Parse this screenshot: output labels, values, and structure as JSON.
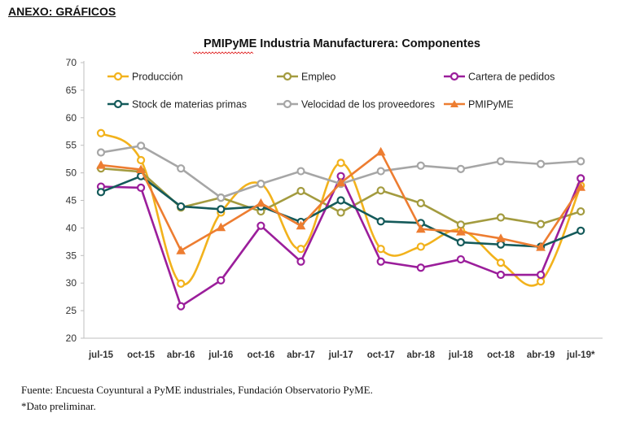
{
  "page": {
    "heading": "ANEXO: GRÁFICOS",
    "source": "Fuente: Encuesta Coyuntural a PyME industriales, Fundación Observatorio PyME.",
    "note": "*Dato preliminar."
  },
  "chart_data": {
    "type": "line",
    "title": "PMIPyME Industria Manufacturera: Componentes",
    "xlabel": "",
    "ylabel": "",
    "categories": [
      "jul-15",
      "oct-15",
      "abr-16",
      "jul-16",
      "oct-16",
      "abr-17",
      "jul-17",
      "oct-17",
      "abr-18",
      "jul-18",
      "oct-18",
      "abr-19",
      "jul-19*"
    ],
    "ylim": [
      20,
      70
    ],
    "yticks": [
      20,
      25,
      30,
      35,
      40,
      45,
      50,
      55,
      60,
      65,
      70
    ],
    "grid": false,
    "legend_position": "top",
    "series": [
      {
        "name": "Producción",
        "color": "#F2B21C",
        "marker": "circle",
        "smooth": true,
        "values": [
          57.2,
          52.3,
          29.9,
          42.8,
          48.0,
          36.2,
          51.8,
          36.2,
          36.6,
          39.6,
          33.7,
          30.3,
          47.7
        ]
      },
      {
        "name": "Empleo",
        "color": "#A39B3F",
        "marker": "circle",
        "smooth": false,
        "values": [
          50.8,
          50.2,
          43.7,
          45.5,
          43.0,
          46.7,
          42.8,
          46.8,
          44.5,
          40.6,
          41.9,
          40.7,
          43.0
        ]
      },
      {
        "name": "Cartera de pedidos",
        "color": "#9B1E9B",
        "marker": "circle",
        "smooth": false,
        "values": [
          47.5,
          47.3,
          25.8,
          30.5,
          40.4,
          33.9,
          49.4,
          33.9,
          32.8,
          34.3,
          31.5,
          31.5,
          49.0
        ]
      },
      {
        "name": "Stock de materias primas",
        "color": "#145A5A",
        "marker": "circle",
        "smooth": false,
        "values": [
          46.5,
          49.4,
          43.9,
          43.4,
          43.9,
          41.1,
          45.0,
          41.2,
          40.9,
          37.4,
          37.0,
          36.6,
          39.5
        ]
      },
      {
        "name": "Velocidad de los proveedores",
        "color": "#A6A6A6",
        "marker": "circle",
        "smooth": false,
        "values": [
          53.7,
          54.9,
          50.8,
          45.5,
          48.0,
          50.3,
          48.0,
          50.3,
          51.3,
          50.7,
          52.1,
          51.6,
          52.1
        ]
      },
      {
        "name": "PMIPyME",
        "color": "#ED7D31",
        "marker": "triangle",
        "smooth": false,
        "values": [
          51.4,
          50.6,
          35.9,
          40.1,
          44.5,
          40.4,
          48.2,
          53.8,
          39.8,
          39.3,
          38.1,
          36.5,
          47.4
        ]
      }
    ]
  }
}
